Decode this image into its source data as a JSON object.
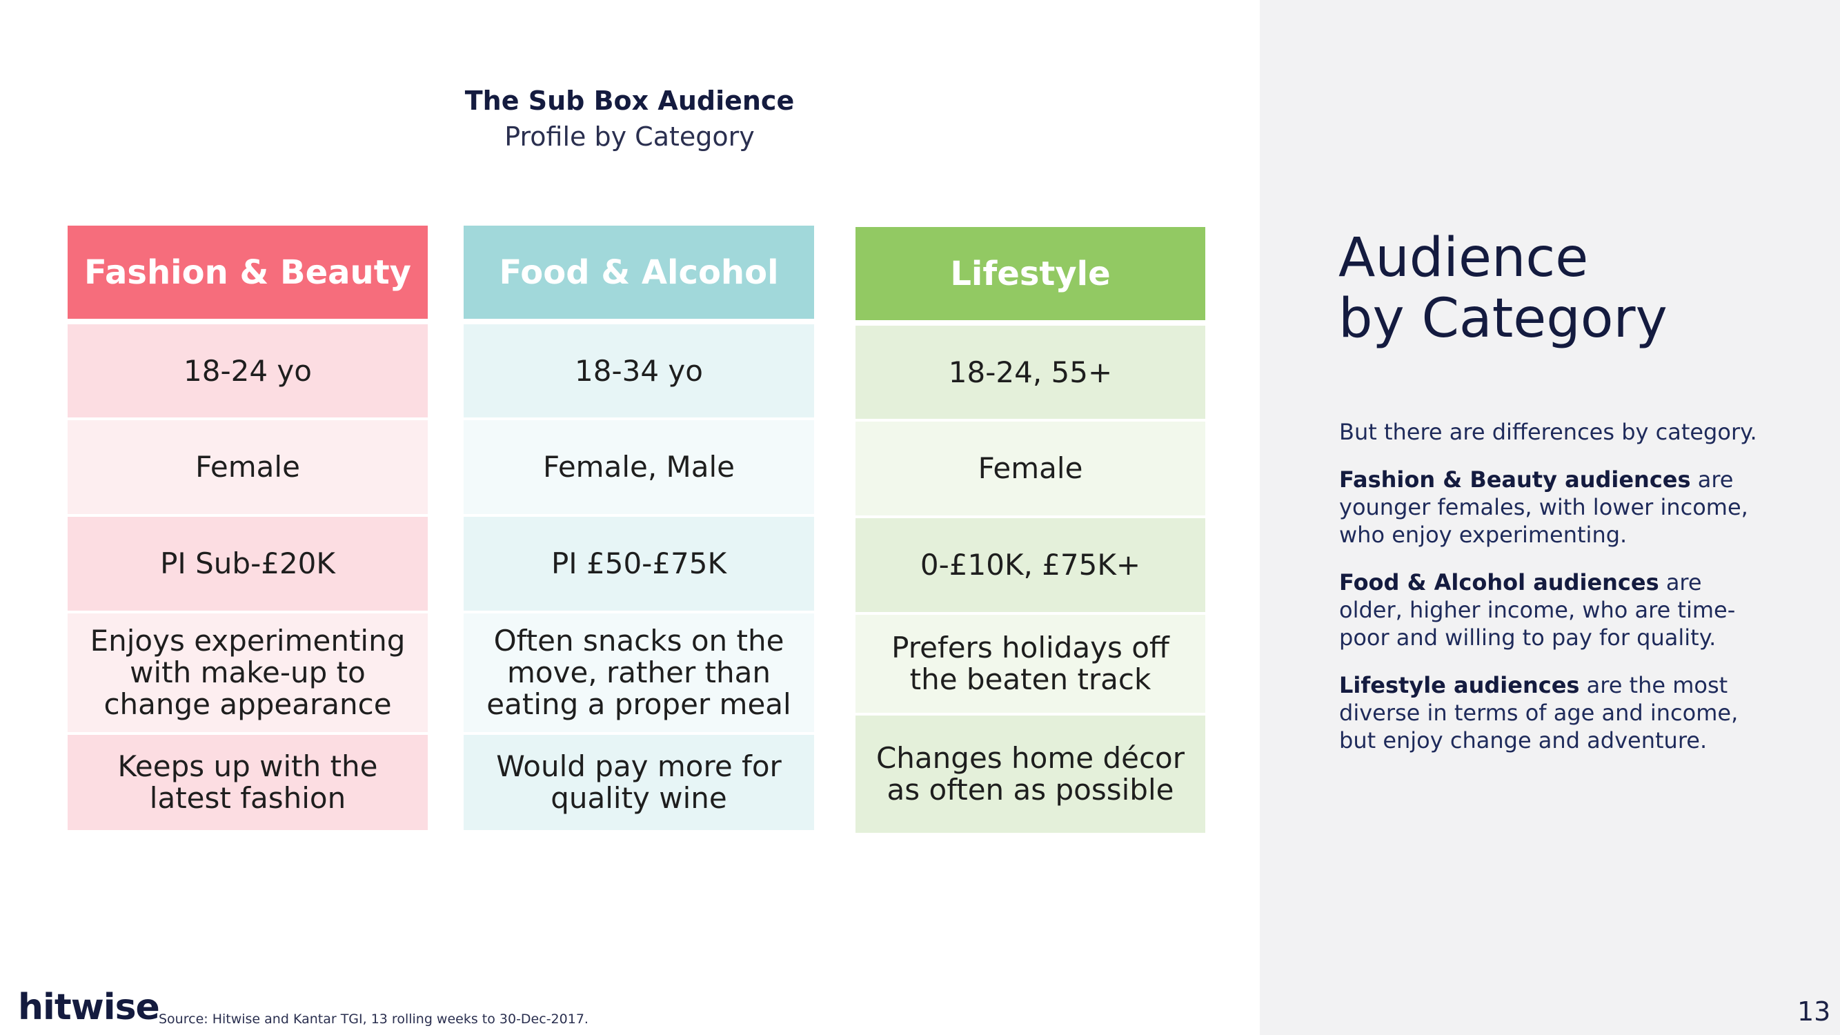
{
  "header": {
    "title": "The Sub Box Audience",
    "subtitle": "Profile by Category"
  },
  "columns": [
    {
      "name": "Fashion & Beauty",
      "header_color": "#f66d7c",
      "cells": [
        {
          "text": "18-24 yo",
          "bg": "#fcdde2"
        },
        {
          "text": "Female",
          "bg": "#fdeef0"
        },
        {
          "text": "PI Sub-£20K",
          "bg": "#fcdde2"
        },
        {
          "text": "Enjoys experimenting with make-up to change appearance",
          "bg": "#fdeef0"
        },
        {
          "text": "Keeps up with the latest fashion",
          "bg": "#fcdde2"
        }
      ]
    },
    {
      "name": "Food & Alcohol",
      "header_color": "#a1d8da",
      "cells": [
        {
          "text": "18-34 yo",
          "bg": "#e7f5f6"
        },
        {
          "text": "Female, Male",
          "bg": "#f3fafb"
        },
        {
          "text": "PI £50-£75K",
          "bg": "#e7f5f6"
        },
        {
          "text": "Often snacks on the move, rather than eating a proper meal",
          "bg": "#f3fafb"
        },
        {
          "text": "Would pay more for quality wine",
          "bg": "#e7f5f6"
        }
      ]
    },
    {
      "name": "Lifestyle",
      "header_color": "#92c963",
      "cells": [
        {
          "text": "18-24, 55+",
          "bg": "#e4f0da"
        },
        {
          "text": "Female",
          "bg": "#f2f8ec"
        },
        {
          "text": "0-£10K, £75K+",
          "bg": "#e4f0da"
        },
        {
          "text": "Prefers holidays off the beaten track",
          "bg": "#f2f8ec"
        },
        {
          "text": "Changes home décor as often as possible",
          "bg": "#e4f0da"
        }
      ]
    }
  ],
  "side_panel": {
    "title_line1": "Audience",
    "title_line2": "by Category",
    "intro": "But there are differences by category.",
    "p1_bold": "Fashion & Beauty audiences",
    "p1_text": " are younger females, with lower income, who enjoy experimenting.",
    "p2_bold": "Food & Alcohol audiences",
    "p2_text": " are older, higher income, who are time-poor and willing to pay for quality.",
    "p3_bold": "Lifestyle audiences",
    "p3_text": " are the most diverse in terms of age and income, but enjoy change and adventure."
  },
  "footer": {
    "logo": "hitwise",
    "source": "Source: Hitwise and Kantar TGI, 13 rolling weeks to 30-Dec-2017.",
    "page_number": "13"
  }
}
